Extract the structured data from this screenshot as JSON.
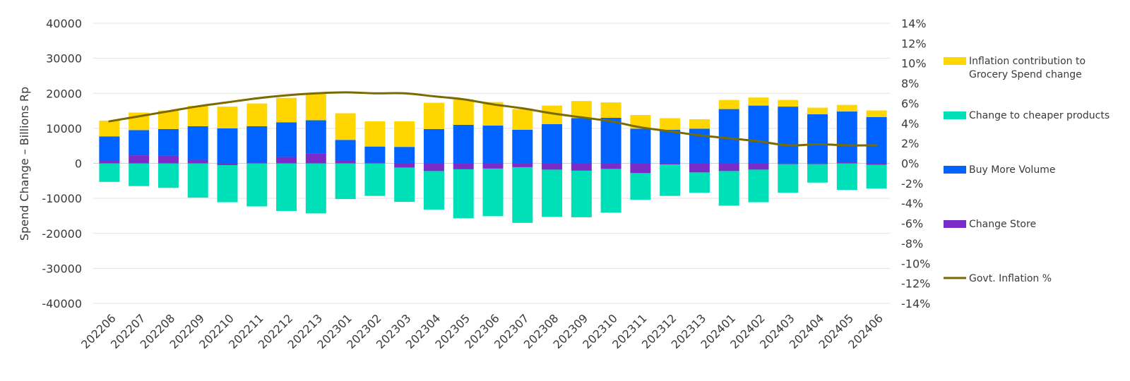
{
  "chart_data": {
    "type": "bar",
    "stacked": true,
    "ylabel": "Spend Change – Billions Rp",
    "y_ticks": [
      "40000",
      "30000",
      "20000",
      "10000",
      "0",
      "-10000",
      "-20000",
      "-30000",
      "-40000"
    ],
    "y2_ticks": [
      "14%",
      "12%",
      "10%",
      "8%",
      "6%",
      "4%",
      "2%",
      "0%",
      "-2%",
      "-4%",
      "-6%",
      "-8%",
      "-10%",
      "-12%",
      "-14%"
    ],
    "ylim": [
      -40000,
      40000
    ],
    "y2lim": [
      -14,
      14
    ],
    "grid": true,
    "legend_position": "right",
    "categories": [
      "202206",
      "202207",
      "202208",
      "202209",
      "202210",
      "202211",
      "202212",
      "202213",
      "202301",
      "202302",
      "202303",
      "202304",
      "202305",
      "202306",
      "202307",
      "202308",
      "202309",
      "202310",
      "202311",
      "202312",
      "202313",
      "202401",
      "202402",
      "202403",
      "202404",
      "202405",
      "202406"
    ],
    "series": [
      {
        "name": "Inflation contribution to Grocery Spend change",
        "color": "#FFD600",
        "axis": "left",
        "values": [
          4500,
          5000,
          5300,
          5800,
          6200,
          6500,
          7000,
          7700,
          7600,
          7200,
          7300,
          7500,
          7200,
          6700,
          5900,
          5300,
          4900,
          4400,
          3900,
          3300,
          2700,
          2600,
          2300,
          1900,
          1900,
          1900,
          1900
        ]
      },
      {
        "name": "Change to cheaper products",
        "color": "#00E0B8",
        "axis": "left",
        "values": [
          -5300,
          -6500,
          -7000,
          -9800,
          -10600,
          -12300,
          -13600,
          -14300,
          -10200,
          -9300,
          -9800,
          -11000,
          -14000,
          -13600,
          -15900,
          -13500,
          -13300,
          -12500,
          -7600,
          -9000,
          -5800,
          -9900,
          -9300,
          -8200,
          -5300,
          -7600,
          -6800
        ]
      },
      {
        "name": "Buy More Volume",
        "color": "#0062FF",
        "axis": "left",
        "values": [
          7000,
          7200,
          7600,
          9600,
          10000,
          10400,
          9900,
          9400,
          5800,
          4600,
          4700,
          9800,
          11000,
          10800,
          9600,
          11200,
          12900,
          13000,
          9900,
          9600,
          9900,
          15500,
          16500,
          16200,
          14000,
          14500,
          13200
        ]
      },
      {
        "name": "Change Store",
        "color": "#7B2CC8",
        "axis": "left",
        "values": [
          700,
          2300,
          2200,
          1000,
          -500,
          200,
          1800,
          2900,
          900,
          200,
          -1200,
          -2200,
          -1700,
          -1500,
          -1100,
          -1800,
          -2100,
          -1600,
          -2800,
          -300,
          -2600,
          -2200,
          -1800,
          -200,
          -200,
          300,
          -400
        ]
      },
      {
        "name": "Govt. Inflation %",
        "color": "#7A6A00",
        "axis": "right",
        "type": "line",
        "values": [
          4.2,
          4.7,
          5.2,
          5.7,
          6.1,
          6.5,
          6.8,
          7.0,
          7.1,
          7.0,
          7.0,
          6.7,
          6.4,
          5.9,
          5.5,
          5.0,
          4.6,
          4.2,
          3.6,
          3.2,
          2.8,
          2.5,
          2.2,
          1.8,
          1.9,
          1.8,
          1.8
        ]
      }
    ]
  }
}
